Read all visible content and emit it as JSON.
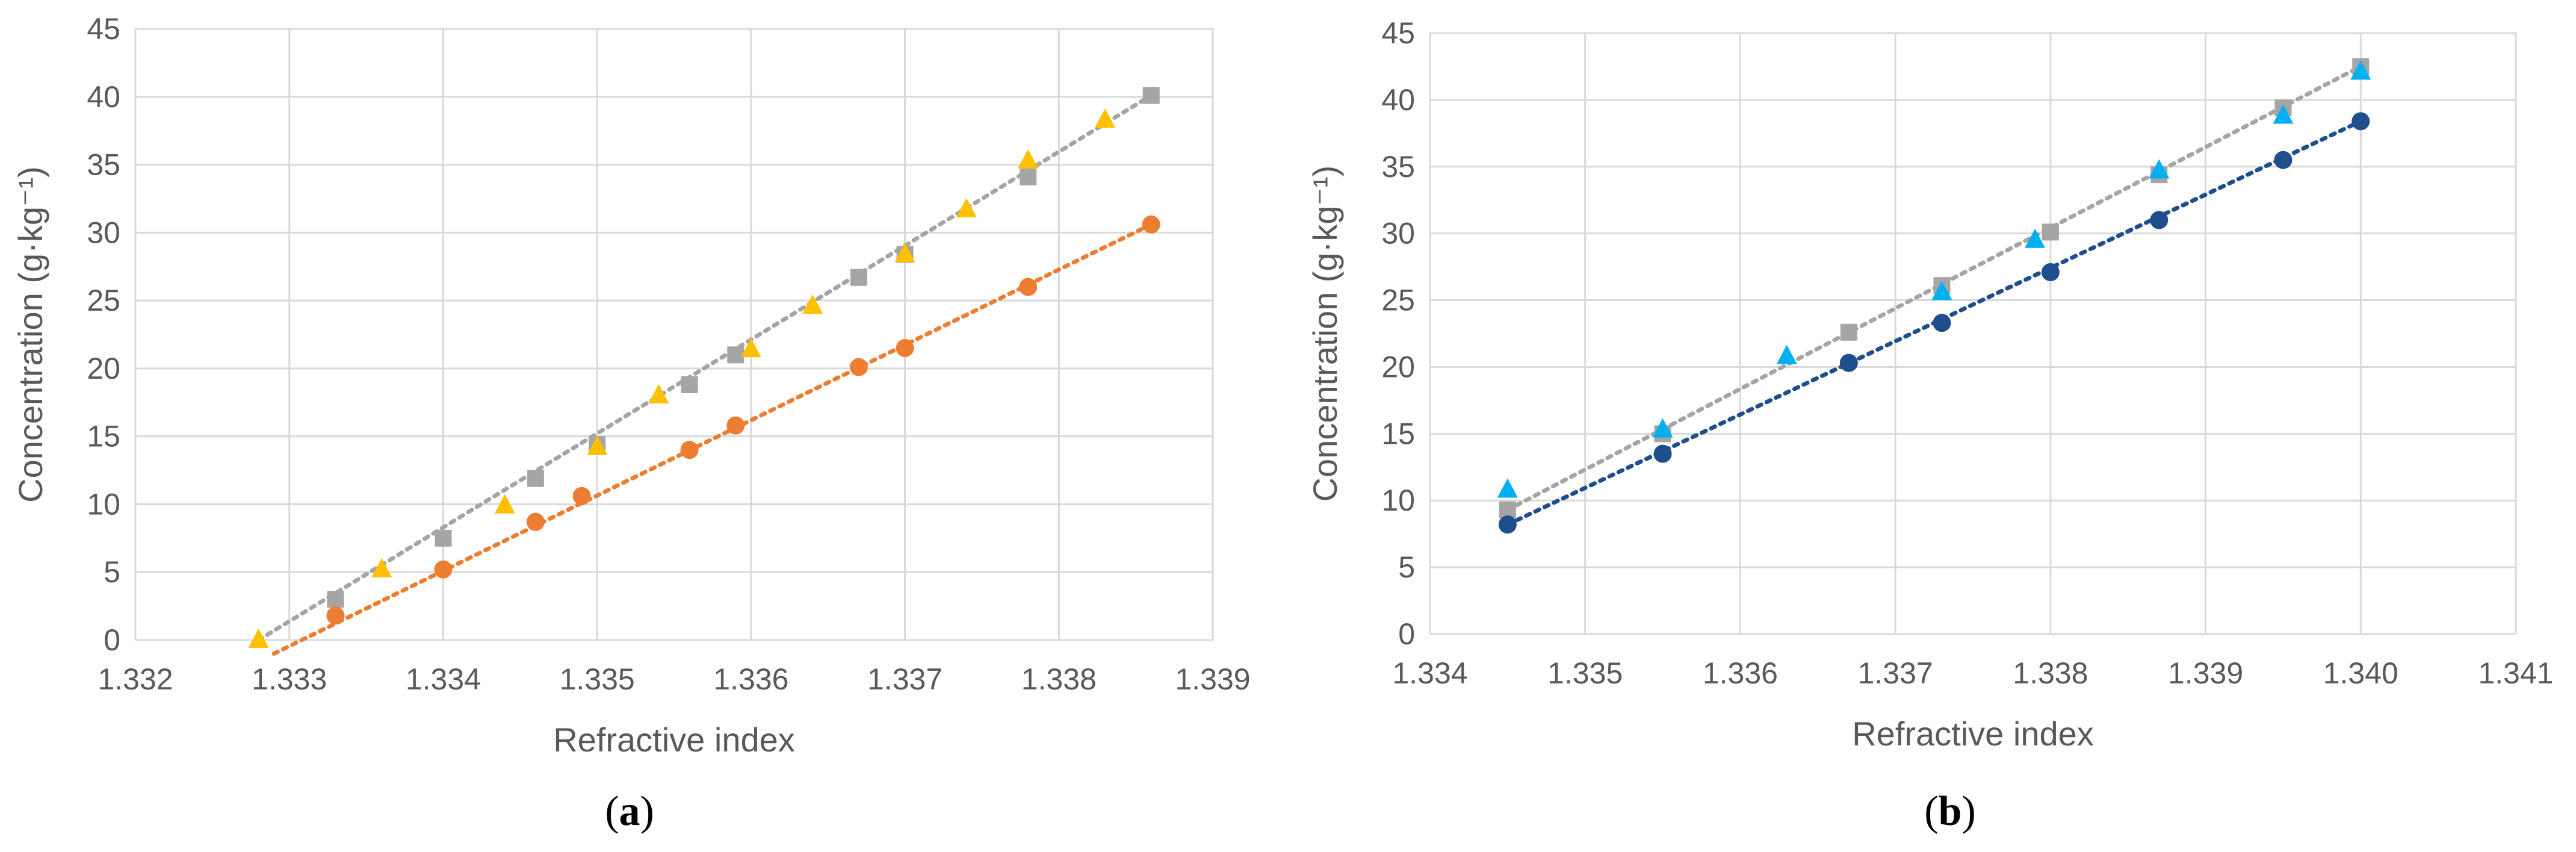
{
  "chart_data": [
    {
      "type": "scatter",
      "panel_label": "a",
      "xlabel": "Refractive index",
      "ylabel": "Concentration (g·kg⁻¹)",
      "xlim": [
        1.332,
        1.339
      ],
      "ylim": [
        0,
        45
      ],
      "xticks": [
        "1.332",
        "1.333",
        "1.334",
        "1.335",
        "1.336",
        "1.337",
        "1.338",
        "1.339"
      ],
      "yticks": [
        "0",
        "5",
        "10",
        "15",
        "20",
        "25",
        "30",
        "35",
        "40",
        "45"
      ],
      "grid": true,
      "series": [
        {
          "marker": "square",
          "color": "#a5a5a5",
          "points": [
            [
              1.3333,
              3.0
            ],
            [
              1.334,
              7.5
            ],
            [
              1.3346,
              11.9
            ],
            [
              1.335,
              14.4
            ],
            [
              1.3356,
              18.8
            ],
            [
              1.3359,
              21.0
            ],
            [
              1.3367,
              26.7
            ],
            [
              1.337,
              28.4
            ],
            [
              1.3378,
              34.1
            ],
            [
              1.3386,
              40.1
            ]
          ],
          "trend": {
            "color": "#a5a5a5",
            "from": [
              1.3328,
              0.0
            ],
            "to": [
              1.3386,
              40.1
            ]
          }
        },
        {
          "marker": "triangle",
          "color": "#ffc000",
          "points": [
            [
              1.3328,
              0.0
            ],
            [
              1.3336,
              5.2
            ],
            [
              1.3344,
              9.9
            ],
            [
              1.335,
              14.2
            ],
            [
              1.3354,
              18.0
            ],
            [
              1.336,
              21.4
            ],
            [
              1.3364,
              24.6
            ],
            [
              1.337,
              28.4
            ],
            [
              1.3374,
              31.7
            ],
            [
              1.3378,
              35.3
            ],
            [
              1.3383,
              38.3
            ]
          ],
          "trend": null
        },
        {
          "marker": "circle",
          "color": "#ed7d31",
          "points": [
            [
              1.3333,
              1.8
            ],
            [
              1.334,
              5.2
            ],
            [
              1.3346,
              8.7
            ],
            [
              1.3349,
              10.6
            ],
            [
              1.3356,
              14.0
            ],
            [
              1.3359,
              15.8
            ],
            [
              1.3367,
              20.1
            ],
            [
              1.337,
              21.5
            ],
            [
              1.3378,
              26.0
            ],
            [
              1.3386,
              30.6
            ]
          ],
          "trend": {
            "color": "#ed7d31",
            "from": [
              1.3329,
              -1.0
            ],
            "to": [
              1.3386,
              30.6
            ]
          }
        }
      ]
    },
    {
      "type": "scatter",
      "panel_label": "b",
      "xlabel": "Refractive index",
      "ylabel": "Concentration (g·kg⁻¹)",
      "xlim": [
        1.334,
        1.341
      ],
      "ylim": [
        0,
        45
      ],
      "xticks": [
        "1.334",
        "1.335",
        "1.336",
        "1.337",
        "1.338",
        "1.339",
        "1.340",
        "1.341"
      ],
      "yticks": [
        "0",
        "5",
        "10",
        "15",
        "20",
        "25",
        "30",
        "35",
        "40",
        "45"
      ],
      "grid": true,
      "series": [
        {
          "marker": "square",
          "color": "#a5a5a5",
          "points": [
            [
              1.3345,
              9.3
            ],
            [
              1.3355,
              15.0
            ],
            [
              1.3367,
              22.6
            ],
            [
              1.3373,
              26.1
            ],
            [
              1.338,
              30.1
            ],
            [
              1.3387,
              34.4
            ],
            [
              1.3395,
              39.4
            ],
            [
              1.34,
              42.5
            ]
          ],
          "trend": {
            "color": "#a5a5a5",
            "from": [
              1.3345,
              9.3
            ],
            "to": [
              1.34,
              42.5
            ]
          }
        },
        {
          "marker": "triangle",
          "color": "#00b0f0",
          "points": [
            [
              1.3345,
              10.8
            ],
            [
              1.3355,
              15.3
            ],
            [
              1.3363,
              20.8
            ],
            [
              1.3373,
              25.6
            ],
            [
              1.3379,
              29.5
            ],
            [
              1.3387,
              34.7
            ],
            [
              1.3395,
              38.8
            ],
            [
              1.34,
              42.1
            ]
          ],
          "trend": null
        },
        {
          "marker": "circle",
          "color": "#1f4e8c",
          "points": [
            [
              1.3345,
              8.2
            ],
            [
              1.3355,
              13.5
            ],
            [
              1.3367,
              20.3
            ],
            [
              1.3373,
              23.3
            ],
            [
              1.338,
              27.1
            ],
            [
              1.3387,
              31.0
            ],
            [
              1.3395,
              35.5
            ],
            [
              1.34,
              38.4
            ]
          ],
          "trend": {
            "color": "#1f4e8c",
            "from": [
              1.3345,
              8.2
            ],
            "to": [
              1.34,
              38.4
            ]
          }
        }
      ]
    }
  ]
}
